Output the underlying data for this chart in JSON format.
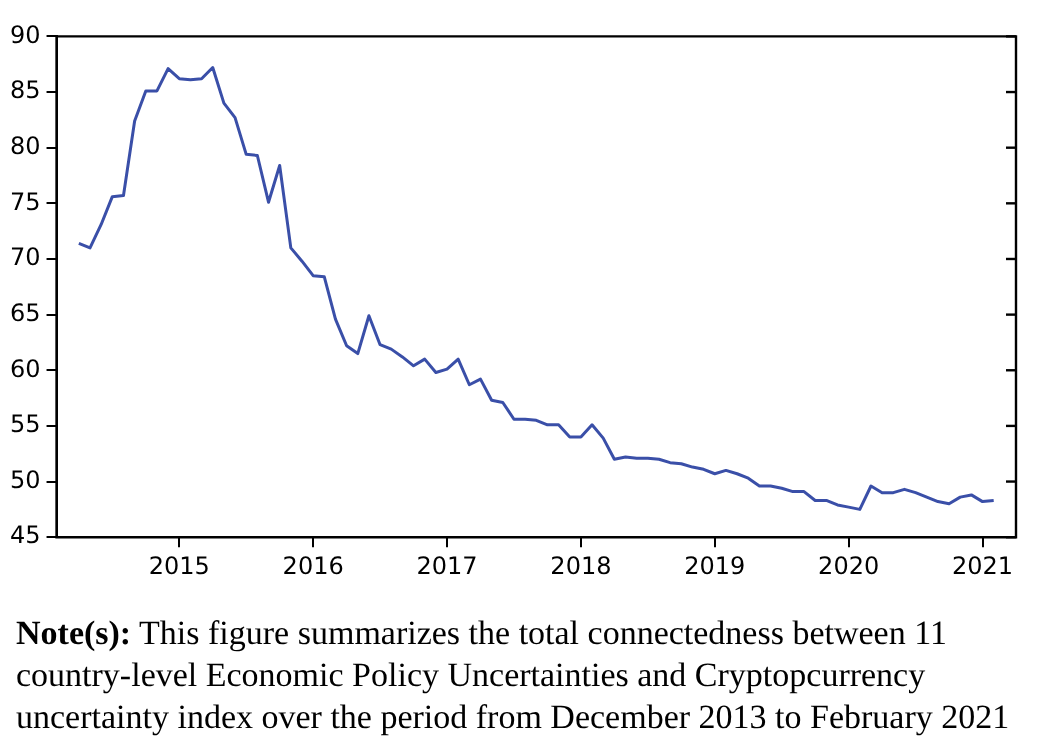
{
  "chart_data": {
    "type": "line",
    "x": [
      "2014-04",
      "2014-05",
      "2014-06",
      "2014-07",
      "2014-08",
      "2014-09",
      "2014-10",
      "2014-11",
      "2014-12",
      "2015-01",
      "2015-02",
      "2015-03",
      "2015-04",
      "2015-05",
      "2015-06",
      "2015-07",
      "2015-08",
      "2015-09",
      "2015-10",
      "2015-11",
      "2015-12",
      "2016-01",
      "2016-02",
      "2016-03",
      "2016-04",
      "2016-05",
      "2016-06",
      "2016-07",
      "2016-08",
      "2016-09",
      "2016-10",
      "2016-11",
      "2016-12",
      "2017-01",
      "2017-02",
      "2017-03",
      "2017-04",
      "2017-05",
      "2017-06",
      "2017-07",
      "2017-08",
      "2017-09",
      "2017-10",
      "2017-11",
      "2017-12",
      "2018-01",
      "2018-02",
      "2018-03",
      "2018-04",
      "2018-05",
      "2018-06",
      "2018-07",
      "2018-08",
      "2018-09",
      "2018-10",
      "2018-11",
      "2018-12",
      "2019-01",
      "2019-02",
      "2019-03",
      "2019-04",
      "2019-05",
      "2019-06",
      "2019-07",
      "2019-08",
      "2019-09",
      "2019-10",
      "2019-11",
      "2019-12",
      "2020-01",
      "2020-02",
      "2020-03",
      "2020-04",
      "2020-05",
      "2020-06",
      "2020-07",
      "2020-08",
      "2020-09",
      "2020-10",
      "2020-11",
      "2020-12",
      "2021-01",
      "2021-02"
    ],
    "series": [
      {
        "color": "#3a4fa8",
        "values": [
          71.4,
          71.0,
          73.1,
          75.6,
          75.7,
          82.4,
          85.1,
          85.1,
          87.1,
          86.2,
          86.1,
          86.2,
          87.2,
          84.0,
          82.7,
          79.4,
          79.3,
          75.1,
          78.4,
          71.0,
          69.8,
          68.5,
          68.4,
          64.6,
          62.2,
          61.5,
          64.9,
          62.3,
          61.9,
          61.2,
          60.4,
          61.0,
          59.8,
          60.1,
          61.0,
          58.7,
          59.2,
          57.3,
          57.1,
          55.6,
          55.6,
          55.5,
          55.1,
          55.1,
          54.0,
          54.0,
          55.1,
          53.9,
          52.0,
          52.2,
          52.1,
          52.1,
          52.0,
          51.7,
          51.6,
          51.3,
          51.1,
          50.7,
          51.0,
          50.7,
          50.3,
          49.6,
          49.6,
          49.4,
          49.1,
          49.1,
          48.3,
          48.3,
          47.9,
          47.7,
          47.5,
          49.6,
          49.0,
          49.0,
          49.3,
          49.0,
          48.6,
          48.2,
          48.0,
          48.6,
          48.8,
          48.2,
          48.3
        ]
      }
    ],
    "xlim": [
      "2014-02",
      "2021-04"
    ],
    "xticks": [
      "2015",
      "2016",
      "2017",
      "2018",
      "2019",
      "2020",
      "2021"
    ],
    "ylim": [
      45,
      90
    ],
    "yticks": [
      45,
      50,
      55,
      60,
      65,
      70,
      75,
      80,
      85,
      90
    ],
    "grid": false,
    "legend": false,
    "marker": "none",
    "line_style": "solid",
    "annotations": [
      "Note(s): This figure summarizes the total connectedness between 11 country-level Economic Policy Uncertainties and Cryptopcurrency uncertainty index over the period from December 2013 to February 2021"
    ]
  }
}
